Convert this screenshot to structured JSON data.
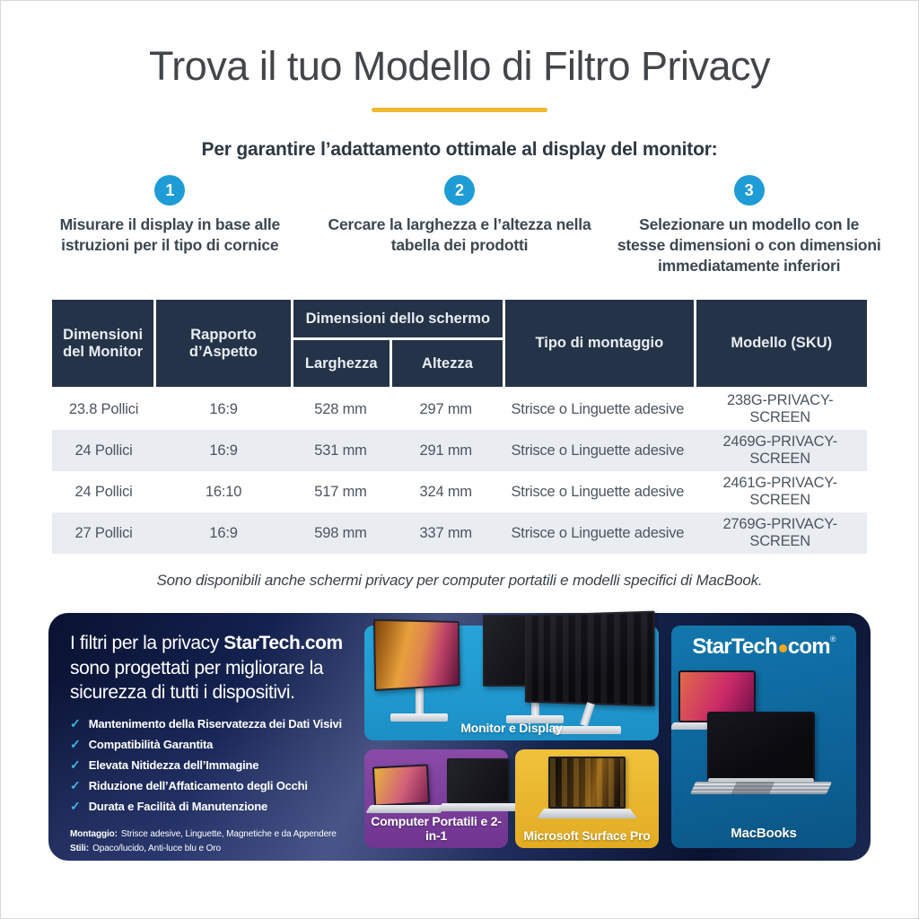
{
  "title": "Trova il tuo Modello di Filtro Privacy",
  "subtitle": "Per garantire l’adattamento ottimale al display del monitor:",
  "steps": [
    {
      "number": "1",
      "text": "Misurare il display in base alle istruzioni per il tipo di cornice"
    },
    {
      "number": "2",
      "text": "Cercare la larghezza e l’altezza nella tabella dei prodotti"
    },
    {
      "number": "3",
      "text": "Selezionare un modello con le stesse dimensioni o con dimensioni immediatamente inferiori"
    }
  ],
  "table": {
    "headers": {
      "monitor": "Dimensioni del Monitor",
      "ratio": "Rapporto d’Aspetto",
      "screen_dims": "Dimensioni dello schermo",
      "width": "Larghezza",
      "height": "Altezza",
      "mount": "Tipo di montaggio",
      "sku": "Modello (SKU)"
    },
    "rows": [
      [
        "23.8 Pollici",
        "16:9",
        "528 mm",
        "297 mm",
        "Strisce o Linguette adesive",
        "238G-PRIVACY-SCREEN"
      ],
      [
        "24 Pollici",
        "16:9",
        "531 mm",
        "291 mm",
        "Strisce o Linguette adesive",
        "2469G-PRIVACY-SCREEN"
      ],
      [
        "24 Pollici",
        "16:10",
        "517 mm",
        "324 mm",
        "Strisce o Linguette adesive",
        "2461G-PRIVACY-SCREEN"
      ],
      [
        "27 Pollici",
        "16:9",
        "598 mm",
        "337 mm",
        "Strisce o Linguette adesive",
        "2769G-PRIVACY-SCREEN"
      ]
    ]
  },
  "note": "Sono disponibili anche schermi privacy per computer portatili e modelli specifici di MacBook.",
  "banner": {
    "heading_pre": "I filtri per la privacy ",
    "heading_brand": "StarTech.com",
    "heading_post": " sono progettati per migliorare la sicurezza di tutti i dispositivi.",
    "checklist": [
      "Mantenimento della Riservatezza dei Dati Visivi",
      "Compatibilità Garantita",
      "Elevata Nitidezza dell’Immagine",
      "Riduzione dell’Affaticamento degli Occhi",
      "Durata e Facilità di Manutenzione"
    ],
    "montaggio_label": "Montaggio:",
    "montaggio_text": "Strisce adesive, Linguette, Magnetiche e da Appendere",
    "stili_label": "Stili:",
    "stili_text": "Opaco/lucido, Anti-luce blu e Oro",
    "panels": {
      "monitors": "Monitor e Display",
      "laptops": "Computer Portatili e 2-in-1",
      "surface": "Microsoft Surface Pro",
      "macbooks": "MacBooks"
    },
    "logo_part1": "StarTech",
    "logo_part2": "com",
    "logo_reg": "®"
  },
  "icons": {
    "check_glyph": "✓"
  },
  "colors": {
    "accent_yellow": "#eeb92f",
    "step_blue": "#1e9cd6",
    "table_header_navy": "#243347",
    "table_row_alt": "#e9edf1",
    "panel_azure": "#219ed6",
    "panel_purple": "#7e3f9d",
    "panel_yellow": "#eebc33",
    "panel_macbook_blue": "#0f6ba0",
    "banner_navy": "#101c44",
    "check_cyan": "#3fb6e9",
    "logo_dot_amber": "#f5a81c"
  }
}
